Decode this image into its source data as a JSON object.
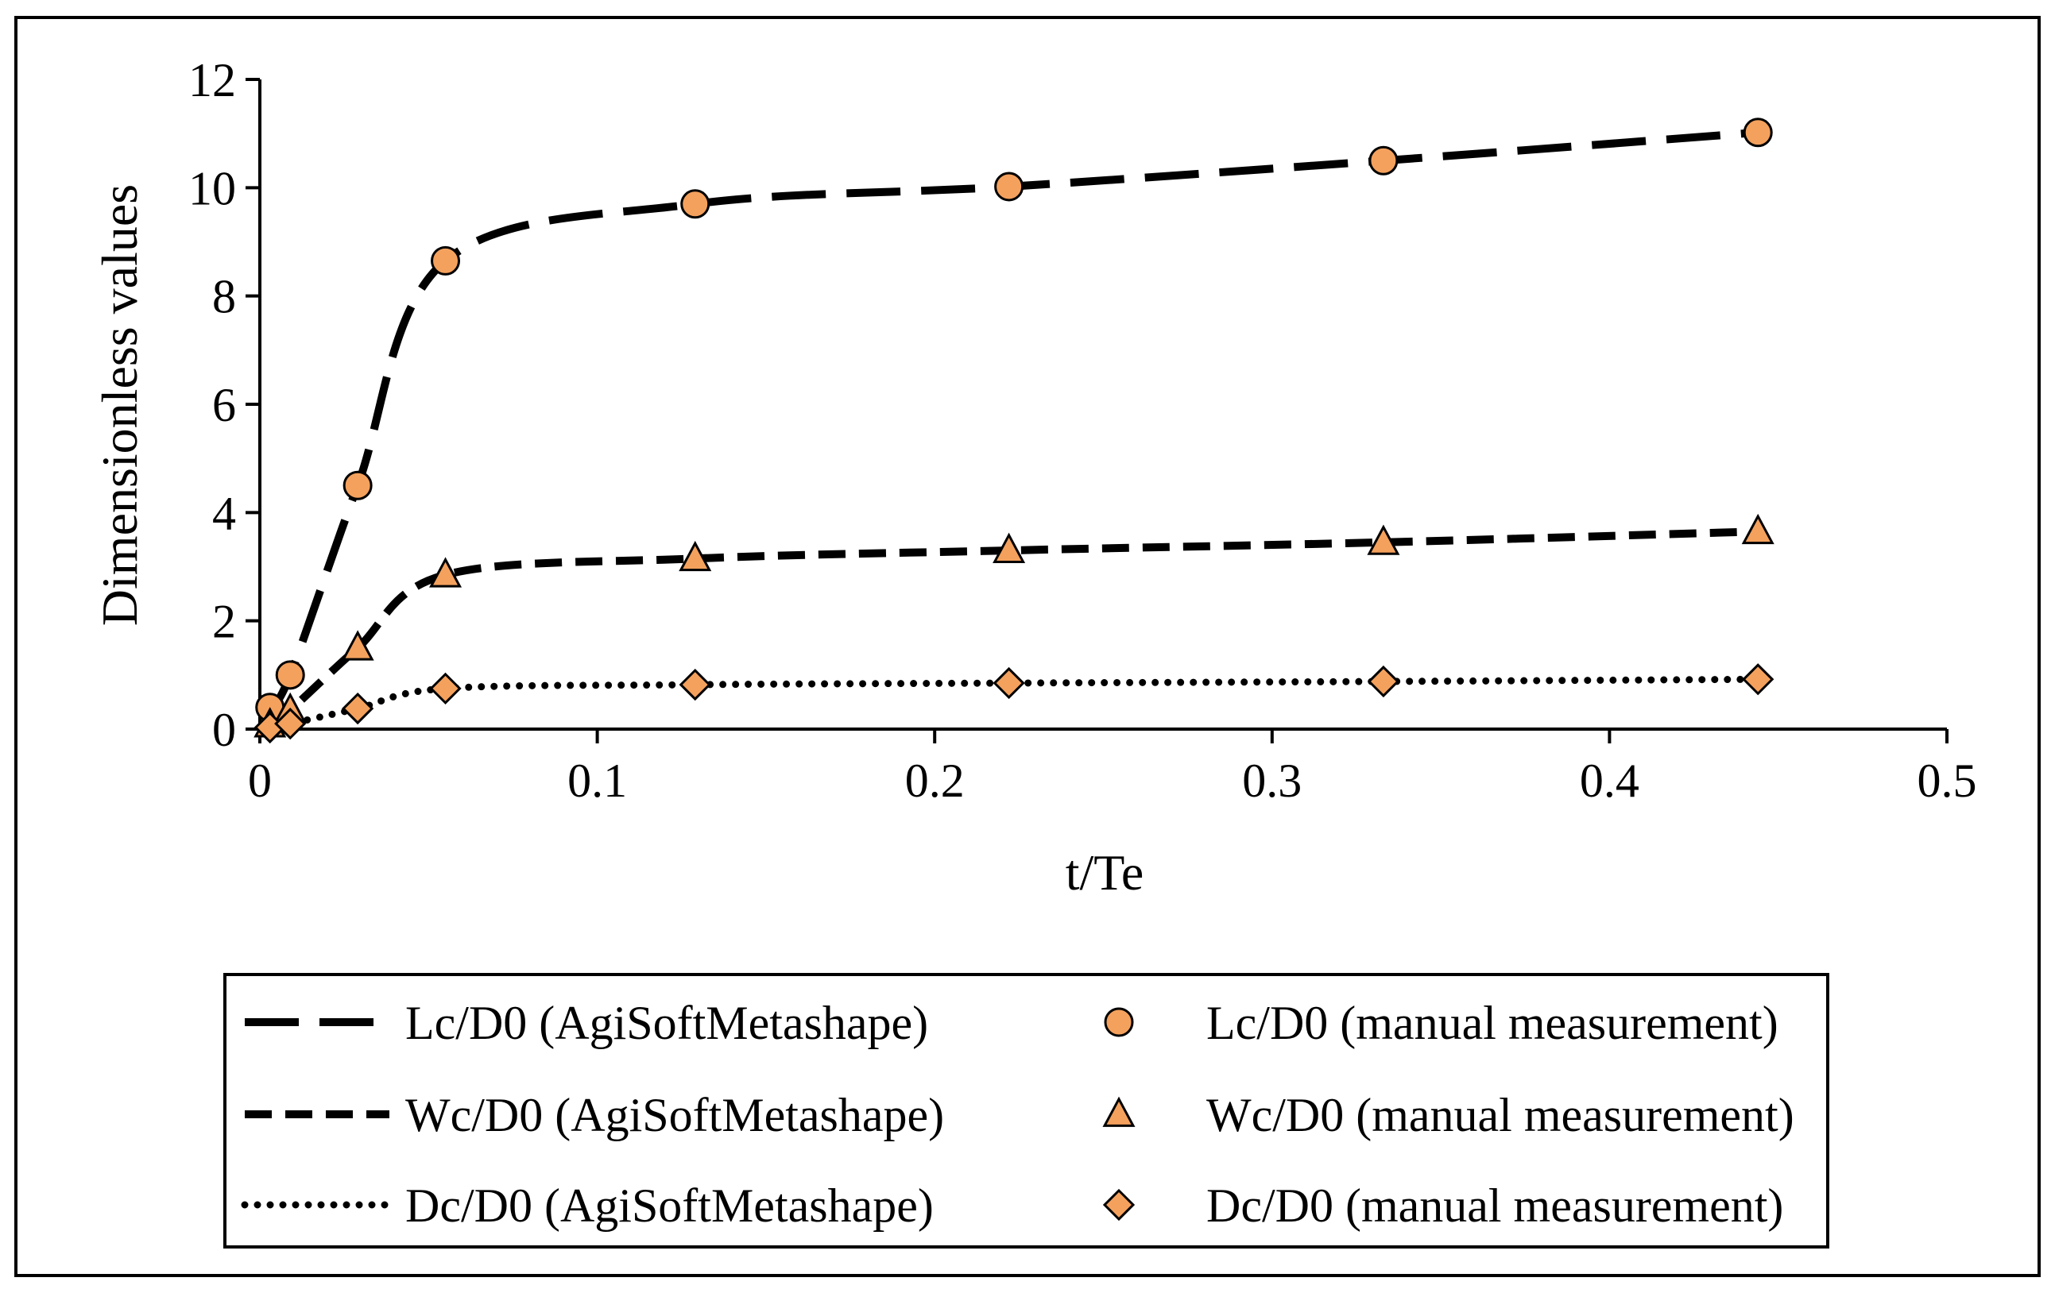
{
  "chart_data": {
    "type": "line",
    "title": "",
    "xlabel": "t/Te",
    "ylabel": "Dimensionless values",
    "xlim": [
      0,
      0.5
    ],
    "ylim": [
      0,
      12
    ],
    "xticks": [
      0,
      0.1,
      0.2,
      0.3,
      0.4,
      0.5
    ],
    "xtick_labels": [
      "0",
      "0.1",
      "0.2",
      "0.3",
      "0.4",
      "0.5"
    ],
    "yticks": [
      0,
      2,
      4,
      6,
      8,
      10,
      12
    ],
    "ytick_labels": [
      "0",
      "2",
      "4",
      "6",
      "8",
      "10",
      "12"
    ],
    "grid": false,
    "legend_position": "bottom",
    "marker_color": "#f4a15d",
    "series": [
      {
        "name": "Lc/D0 (AgiSoftMetashape)",
        "kind": "line",
        "style": "longdash",
        "x": [
          0.003,
          0.009,
          0.029,
          0.055,
          0.129,
          0.222,
          0.333,
          0.444
        ],
        "values": [
          0.4,
          1.0,
          4.5,
          8.65,
          9.7,
          10.02,
          10.5,
          11.02
        ]
      },
      {
        "name": "Wc/D0 (AgiSoftMetashape)",
        "kind": "line",
        "style": "dash",
        "x": [
          0.003,
          0.009,
          0.029,
          0.055,
          0.129,
          0.222,
          0.333,
          0.444
        ],
        "values": [
          0.08,
          0.35,
          1.5,
          2.85,
          3.15,
          3.3,
          3.45,
          3.65
        ]
      },
      {
        "name": "Dc/D0 (AgiSoftMetashape)",
        "kind": "line",
        "style": "dot",
        "x": [
          0.003,
          0.009,
          0.029,
          0.055,
          0.129,
          0.222,
          0.333,
          0.444
        ],
        "values": [
          0.03,
          0.1,
          0.38,
          0.75,
          0.82,
          0.85,
          0.88,
          0.92
        ]
      },
      {
        "name": "Lc/D0 (manual measurement)",
        "kind": "marker",
        "marker": "circle",
        "x": [
          0.003,
          0.009,
          0.029,
          0.055,
          0.129,
          0.222,
          0.333,
          0.444
        ],
        "values": [
          0.4,
          1.0,
          4.5,
          8.65,
          9.7,
          10.02,
          10.5,
          11.02
        ]
      },
      {
        "name": "Wc/D0 (manual measurement)",
        "kind": "marker",
        "marker": "triangle",
        "x": [
          0.003,
          0.009,
          0.029,
          0.055,
          0.129,
          0.222,
          0.333,
          0.444
        ],
        "values": [
          0.08,
          0.35,
          1.5,
          2.85,
          3.15,
          3.3,
          3.45,
          3.65
        ]
      },
      {
        "name": "Dc/D0 (manual measurement)",
        "kind": "marker",
        "marker": "diamond",
        "x": [
          0.003,
          0.009,
          0.029,
          0.055,
          0.129,
          0.222,
          0.333,
          0.444
        ],
        "values": [
          0.03,
          0.1,
          0.38,
          0.75,
          0.82,
          0.85,
          0.88,
          0.92
        ]
      }
    ],
    "legend": {
      "entries": [
        {
          "label": "Lc/D0 (AgiSoftMetashape)",
          "series": 0
        },
        {
          "label": "Lc/D0 (manual measurement)",
          "series": 3
        },
        {
          "label": "Wc/D0 (AgiSoftMetashape)",
          "series": 1
        },
        {
          "label": "Wc/D0 (manual measurement)",
          "series": 4
        },
        {
          "label": "Dc/D0 (AgiSoftMetashape)",
          "series": 2
        },
        {
          "label": "Dc/D0 (manual measurement)",
          "series": 5
        }
      ]
    }
  }
}
